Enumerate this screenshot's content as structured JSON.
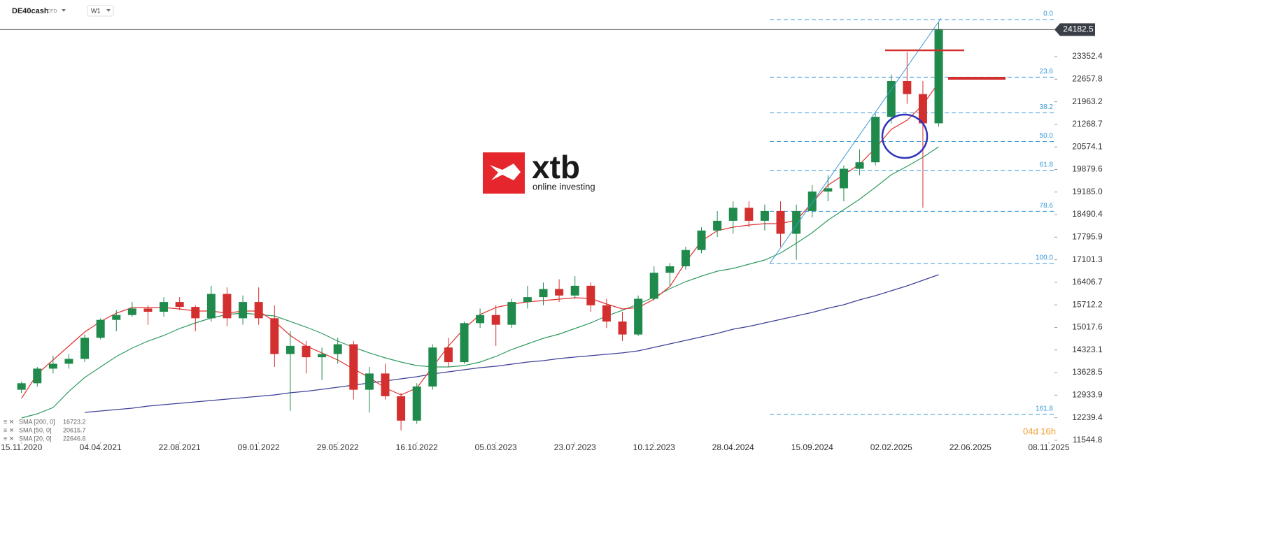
{
  "header": {
    "symbol": "DE40cash",
    "instrument_type": "CFD",
    "timeframe": "W1"
  },
  "logo": {
    "name": "xtb",
    "tagline": "online investing"
  },
  "countdown": "04d 16h",
  "chart_data": {
    "type": "candlestick",
    "x": [
      "15.11.2020",
      "13.12.2020",
      "10.01.2021",
      "07.02.2021",
      "07.03.2021",
      "04.04.2021",
      "02.05.2021",
      "30.05.2021",
      "27.06.2021",
      "25.07.2021",
      "22.08.2021",
      "19.09.2021",
      "17.10.2021",
      "14.11.2021",
      "12.12.2021",
      "09.01.2022",
      "06.02.2022",
      "06.03.2022",
      "03.04.2022",
      "01.05.2022",
      "29.05.2022",
      "26.06.2022",
      "24.07.2022",
      "21.08.2022",
      "18.09.2022",
      "16.10.2022",
      "13.11.2022",
      "11.12.2022",
      "08.01.2023",
      "05.02.2023",
      "05.03.2023",
      "02.04.2023",
      "30.04.2023",
      "28.05.2023",
      "25.06.2023",
      "23.07.2023",
      "20.08.2023",
      "17.09.2023",
      "15.10.2023",
      "12.11.2023",
      "10.12.2023",
      "07.01.2024",
      "04.02.2024",
      "03.03.2024",
      "31.03.2024",
      "28.04.2024",
      "26.05.2024",
      "23.06.2024",
      "21.07.2024",
      "18.08.2024",
      "15.09.2024",
      "13.10.2024",
      "10.11.2024",
      "08.12.2024",
      "05.01.2025",
      "02.02.2025",
      "02.03.2025",
      "30.03.2025",
      "27.04.2025"
    ],
    "open": [
      13100,
      13300,
      13750,
      13900,
      14050,
      14700,
      15250,
      15400,
      15600,
      15500,
      15800,
      15650,
      15300,
      16050,
      15300,
      15800,
      15300,
      14200,
      14450,
      14100,
      14200,
      14500,
      13100,
      13600,
      12900,
      12150,
      13200,
      14400,
      13950,
      15150,
      15400,
      15100,
      15800,
      15950,
      16200,
      16000,
      16300,
      15700,
      15200,
      14800,
      15900,
      16700,
      16900,
      17400,
      18000,
      18300,
      18700,
      18300,
      18600,
      17900,
      18600,
      19200,
      19300,
      19900,
      20100,
      21500,
      22600,
      22200,
      21300
    ],
    "high": [
      13350,
      13800,
      14150,
      14200,
      14800,
      15300,
      15550,
      15800,
      15700,
      15950,
      15950,
      15700,
      16300,
      16250,
      16000,
      16250,
      15700,
      14900,
      14600,
      14400,
      14700,
      14600,
      13800,
      13900,
      13000,
      13300,
      14500,
      14700,
      15200,
      15600,
      15700,
      15900,
      16300,
      16400,
      16500,
      16600,
      16400,
      15900,
      15500,
      16000,
      16900,
      17000,
      17500,
      18100,
      18600,
      18900,
      18900,
      18800,
      18900,
      18800,
      19400,
      19700,
      20000,
      20500,
      21600,
      22800,
      23500,
      22600,
      24400
    ],
    "low": [
      13000,
      13200,
      13600,
      13750,
      13950,
      14650,
      14900,
      15350,
      15100,
      15350,
      15550,
      14900,
      15200,
      15050,
      15100,
      15100,
      13800,
      12450,
      13600,
      13400,
      13900,
      12800,
      12400,
      12800,
      11850,
      12050,
      13100,
      13800,
      13900,
      15000,
      14450,
      15000,
      15600,
      15700,
      15800,
      15900,
      15500,
      15000,
      14600,
      14750,
      15850,
      16300,
      16800,
      17300,
      17800,
      17900,
      18100,
      18000,
      17500,
      17100,
      18400,
      18900,
      18900,
      19700,
      20000,
      21300,
      21900,
      18700,
      21200
    ],
    "close": [
      13300,
      13750,
      13900,
      14050,
      14700,
      15250,
      15400,
      15600,
      15500,
      15800,
      15650,
      15300,
      16050,
      15300,
      15800,
      15300,
      14200,
      14450,
      14100,
      14200,
      14500,
      13100,
      13600,
      12900,
      12150,
      13200,
      14400,
      13950,
      15150,
      15400,
      15100,
      15800,
      15950,
      16200,
      16000,
      16300,
      15700,
      15200,
      14800,
      15900,
      16700,
      16900,
      17400,
      18000,
      18300,
      18700,
      18300,
      18600,
      17900,
      18600,
      19200,
      19300,
      19900,
      20100,
      21500,
      22600,
      22200,
      21300,
      24200
    ],
    "up_color": "#1f8a4c",
    "down_color": "#d32f2f",
    "series": [
      {
        "name": "SMA [200, 0]",
        "legend_value": 16723.2,
        "color": "#3d3f96",
        "values": [
          null,
          null,
          null,
          null,
          12404,
          12447,
          12490,
          12533,
          12598,
          12641,
          12684,
          12727,
          12770,
          12813,
          12856,
          12899,
          12942,
          13007,
          13050,
          13114,
          13178,
          13243,
          13307,
          13372,
          13436,
          13501,
          13587,
          13651,
          13716,
          13780,
          13824,
          13888,
          13953,
          13996,
          14060,
          14104,
          14147,
          14190,
          14233,
          14297,
          14405,
          14512,
          14620,
          14727,
          14835,
          14964,
          15050,
          15157,
          15265,
          15373,
          15480,
          15609,
          15717,
          15867,
          15996,
          16147,
          16297,
          16469,
          16641
        ]
      },
      {
        "name": "SMA [50, 0]",
        "legend_value": 20615.7,
        "color": "#2e9b5f",
        "values": [
          12232,
          12361,
          12555,
          13050,
          13480,
          13802,
          14125,
          14383,
          14598,
          14770,
          14985,
          15157,
          15308,
          15415,
          15459,
          15415,
          15373,
          15201,
          15028,
          14835,
          14598,
          14405,
          14233,
          14082,
          13953,
          13845,
          13802,
          13802,
          13845,
          13953,
          14125,
          14340,
          14512,
          14684,
          14813,
          14985,
          15157,
          15373,
          15545,
          15738,
          15953,
          16211,
          16426,
          16599,
          16749,
          16835,
          16964,
          17093,
          17308,
          17609,
          17932,
          18319,
          18642,
          18964,
          19330,
          19718,
          19975,
          20255,
          20578
        ]
      },
      {
        "name": "SMA [20, 0]",
        "legend_value": 22646.6,
        "color": "#e03030",
        "values": [
          12835,
          13587,
          14017,
          14448,
          14878,
          15201,
          15459,
          15630,
          15630,
          15630,
          15588,
          15523,
          15523,
          15459,
          15523,
          15523,
          15201,
          14770,
          14448,
          14233,
          14017,
          13738,
          13480,
          13157,
          12942,
          13157,
          13802,
          14448,
          14985,
          15415,
          15630,
          15738,
          15802,
          15845,
          15888,
          15932,
          15910,
          15738,
          15588,
          15630,
          15888,
          16276,
          17029,
          17674,
          17997,
          18104,
          18169,
          18212,
          18212,
          18319,
          18857,
          19395,
          19718,
          20040,
          20535,
          21114,
          21395,
          21868,
          22557
        ]
      }
    ],
    "xlim": [
      "08.10.2020",
      "18.11.2025"
    ],
    "xticks": [
      "15.11.2020",
      "04.04.2021",
      "22.08.2021",
      "09.01.2022",
      "29.05.2022",
      "16.10.2022",
      "05.03.2023",
      "23.07.2023",
      "10.12.2023",
      "28.04.2024",
      "15.09.2024",
      "02.02.2025",
      "22.06.2025",
      "08.11.2025"
    ],
    "ylim": [
      11500,
      25095
    ],
    "yticks": [
      11544.8,
      12239.4,
      12933.9,
      13628.5,
      14323.1,
      15017.6,
      15712.2,
      16406.7,
      17101.3,
      17795.9,
      18490.4,
      {
        "value": 19185,
        "label": "19185.0"
      },
      19879.6,
      20574.1,
      21268.7,
      21963.2,
      22657.8,
      23352.4
    ],
    "last_price": 24182.5,
    "fibonacci": {
      "high": 24493,
      "low": 16985,
      "color": "#3a9ad9",
      "levels": [
        {
          "value": 0,
          "label": "0.0"
        },
        23.6,
        38.2,
        {
          "value": 50,
          "label": "50.0"
        },
        61.8,
        78.6,
        {
          "value": 100,
          "label": "100.0"
        },
        161.8
      ]
    }
  }
}
